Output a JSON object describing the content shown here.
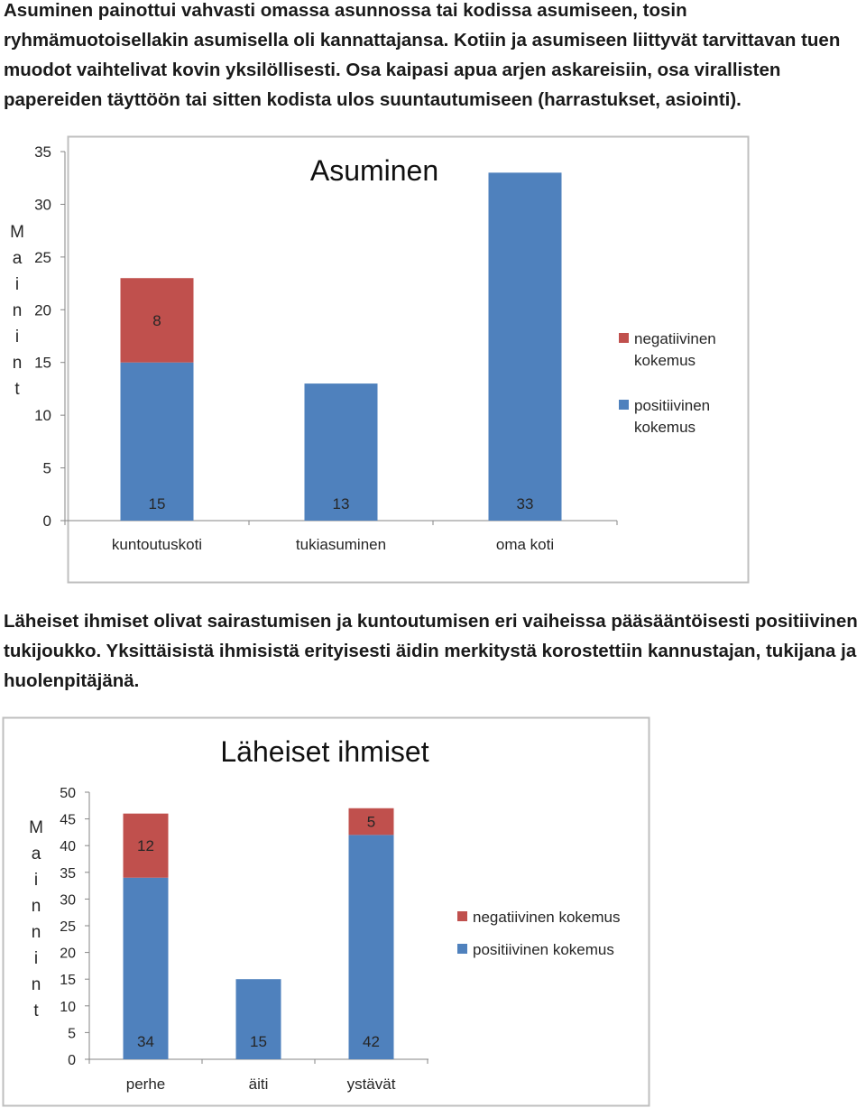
{
  "paragraphs": {
    "intro": "Asuminen painottui vahvasti omassa asunnossa tai kodissa asumiseen, tosin ryhmämuotoisellakin asumisella oli kannattajansa. Kotiin ja asumiseen liittyvät tarvittavan tuen muodot vaihtelivat kovin yksilöllisesti. Osa kaipasi apua arjen askareisiin, osa virallisten papereiden täyttöön tai sitten kodista ulos suuntautumiseen (harrastukset, asiointi).",
    "middle": "Läheiset ihmiset olivat sairastumisen ja kuntoutumisen eri vaiheissa pääsääntöisesti positiivinen tukijoukko. Yksittäisistä ihmisistä erityisesti äidin merkitystä korostettiin kannustajan, tukijana ja huolenpitäjänä."
  },
  "colors": {
    "positive": "#4f81bd",
    "negative": "#c0504d",
    "border": "#bfbfbf",
    "axis": "#868686"
  },
  "chart_data": [
    {
      "type": "bar",
      "stacked": true,
      "title": "Asuminen",
      "ylabel": "Mainint",
      "categories": [
        "kuntoutuskoti",
        "tukiasuminen",
        "oma koti"
      ],
      "series": [
        {
          "name": "positiivinen kokemus",
          "values": [
            15,
            13,
            33
          ],
          "labels": [
            "15",
            "13",
            "33"
          ]
        },
        {
          "name": "negatiivinen kokemus",
          "values": [
            8,
            0,
            0
          ],
          "labels": [
            "8",
            "",
            ""
          ]
        }
      ],
      "ylim": [
        0,
        35
      ],
      "yticks": [
        "0",
        "5",
        "10",
        "15",
        "20",
        "25",
        "30",
        "35"
      ],
      "legend_position": "right",
      "grid": false
    },
    {
      "type": "bar",
      "stacked": true,
      "title": "Läheiset ihmiset",
      "ylabel": "Mainnint",
      "categories": [
        "perhe",
        "äiti",
        "ystävät"
      ],
      "series": [
        {
          "name": "positiivinen kokemus",
          "values": [
            34,
            15,
            42
          ],
          "labels": [
            "34",
            "15",
            "42"
          ]
        },
        {
          "name": "negatiivinen kokemus",
          "values": [
            12,
            0,
            5
          ],
          "labels": [
            "12",
            "",
            "5"
          ]
        }
      ],
      "ylim": [
        0,
        50
      ],
      "yticks": [
        "0",
        "5",
        "10",
        "15",
        "20",
        "25",
        "30",
        "35",
        "40",
        "45",
        "50"
      ],
      "legend_position": "right",
      "grid": false
    }
  ]
}
